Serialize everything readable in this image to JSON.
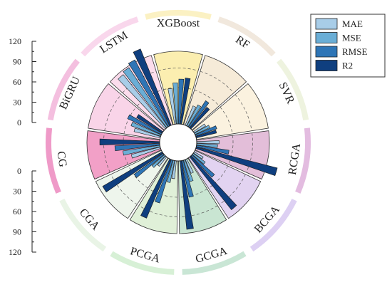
{
  "chart_data": {
    "type": "radial-bar",
    "title": "",
    "categories": [
      "XGBoost",
      "RF",
      "SVR",
      "RCGA",
      "BCGA",
      "GCGA",
      "PCGA",
      "CGA",
      "CG",
      "BiGRU",
      "LSTM"
    ],
    "series": [
      {
        "name": "MAE",
        "color": "#a8cde8",
        "values": [
          48,
          28,
          18,
          30,
          14,
          20,
          24,
          16,
          40,
          36,
          92
        ]
      },
      {
        "name": "MSE",
        "color": "#6aaed6",
        "values": [
          55,
          32,
          22,
          28,
          20,
          30,
          30,
          22,
          50,
          42,
          95
        ]
      },
      {
        "name": "RMSE",
        "color": "#2e75b6",
        "values": [
          60,
          42,
          30,
          44,
          40,
          50,
          60,
          48,
          60,
          50,
          100
        ]
      },
      {
        "name": "R2",
        "color": "#0f3f7f",
        "values": [
          62,
          36,
          28,
          112,
          90,
          92,
          85,
          92,
          80,
          40,
          110
        ]
      }
    ],
    "category_colors": [
      "#fbeeb0",
      "#f6ebd8",
      "#fbf2df",
      "#e3bed9",
      "#e2d3f1",
      "#c9e5d2",
      "#e0f0d8",
      "#eef5ec",
      "#f2a0c7",
      "#f9d4e8",
      "#fbdcec"
    ],
    "ring_colors": [
      "#fbf1c3",
      "#f1e8dd",
      "#eef3df",
      "#e3bce0",
      "#ddd0f3",
      "#c9e6d5",
      "#d7f0d6",
      "#e9f4e6",
      "#ef9ac8",
      "#f4bfdf",
      "#f9d7ec"
    ],
    "upper_axis": {
      "ticks": [
        "120",
        "90",
        "60",
        "30",
        "0"
      ]
    },
    "lower_axis": {
      "ticks": [
        "0",
        "30",
        "60",
        "90",
        "120"
      ]
    },
    "range": [
      0,
      120
    ],
    "legend_position": "top-right"
  }
}
